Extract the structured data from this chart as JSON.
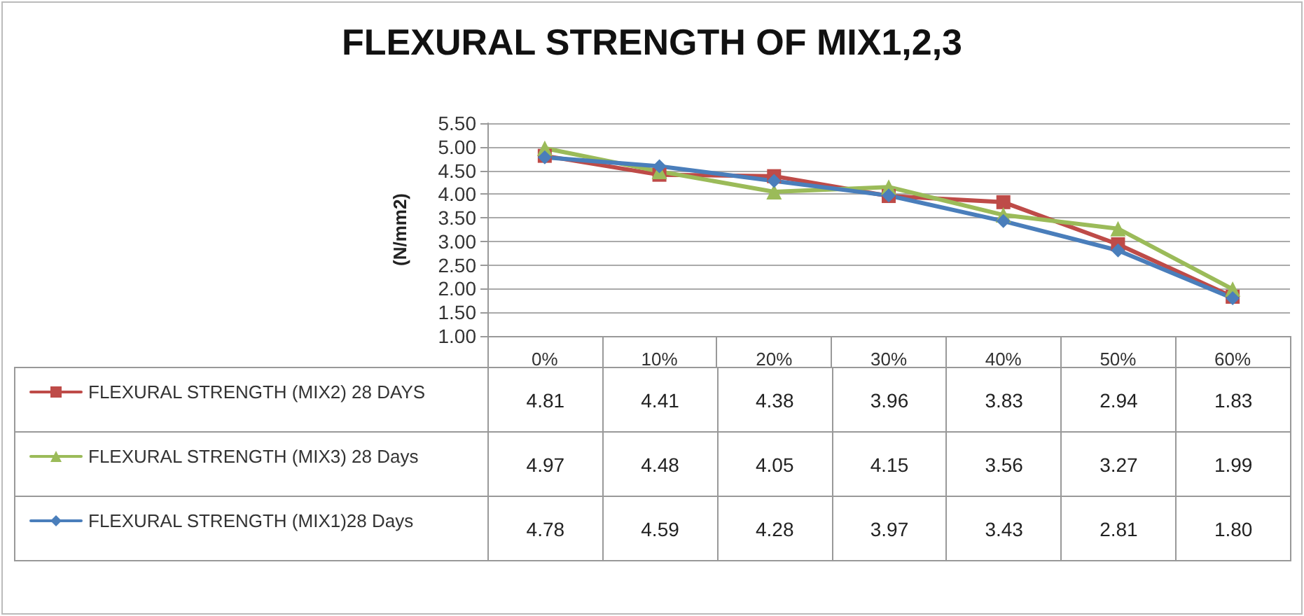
{
  "chart_data": {
    "type": "line",
    "title": "FLEXURAL STRENGTH OF MIX1,2,3",
    "ylabel": "(N/mm2)",
    "categories": [
      "0%",
      "10%",
      "20%",
      "30%",
      "40%",
      "50%",
      "60%"
    ],
    "series": [
      {
        "name": "FLEXURAL STRENGTH (MIX2) 28 DAYS",
        "color": "#be4b48",
        "marker": "square",
        "values": [
          4.81,
          4.41,
          4.38,
          3.96,
          3.83,
          2.94,
          1.83
        ],
        "value_labels": [
          "4.81",
          "4.41",
          "4.38",
          "3.96",
          "3.83",
          "2.94",
          "1.83"
        ]
      },
      {
        "name": "FLEXURAL STRENGTH (MIX3) 28 Days",
        "color": "#9bbb59",
        "marker": "triangle",
        "values": [
          4.97,
          4.48,
          4.05,
          4.15,
          3.56,
          3.27,
          1.99
        ],
        "value_labels": [
          "4.97",
          "4.48",
          "4.05",
          "4.15",
          "3.56",
          "3.27",
          "1.99"
        ]
      },
      {
        "name": "FLEXURAL STRENGTH (MIX1)28 Days",
        "color": "#4a7ebb",
        "marker": "diamond",
        "values": [
          4.78,
          4.59,
          4.28,
          3.97,
          3.43,
          2.81,
          1.8
        ],
        "value_labels": [
          "4.78",
          "4.59",
          "4.28",
          "3.97",
          "3.43",
          "2.81",
          "1.80"
        ]
      }
    ],
    "ylim": [
      1,
      5.5
    ],
    "yticks": [
      {
        "value": 1,
        "label": "1.00"
      },
      {
        "value": 1.5,
        "label": "1.50"
      },
      {
        "value": 2,
        "label": "2.00"
      },
      {
        "value": 2.5,
        "label": "2.50"
      },
      {
        "value": 3,
        "label": "3.00"
      },
      {
        "value": 3.5,
        "label": "3.50"
      },
      {
        "value": 4,
        "label": "4.00"
      },
      {
        "value": 4.5,
        "label": "4.50"
      },
      {
        "value": 5,
        "label": "5.00"
      },
      {
        "value": 5.5,
        "label": "5.50"
      }
    ],
    "grid": "y",
    "legend": "bottom",
    "line_style": "solid"
  }
}
